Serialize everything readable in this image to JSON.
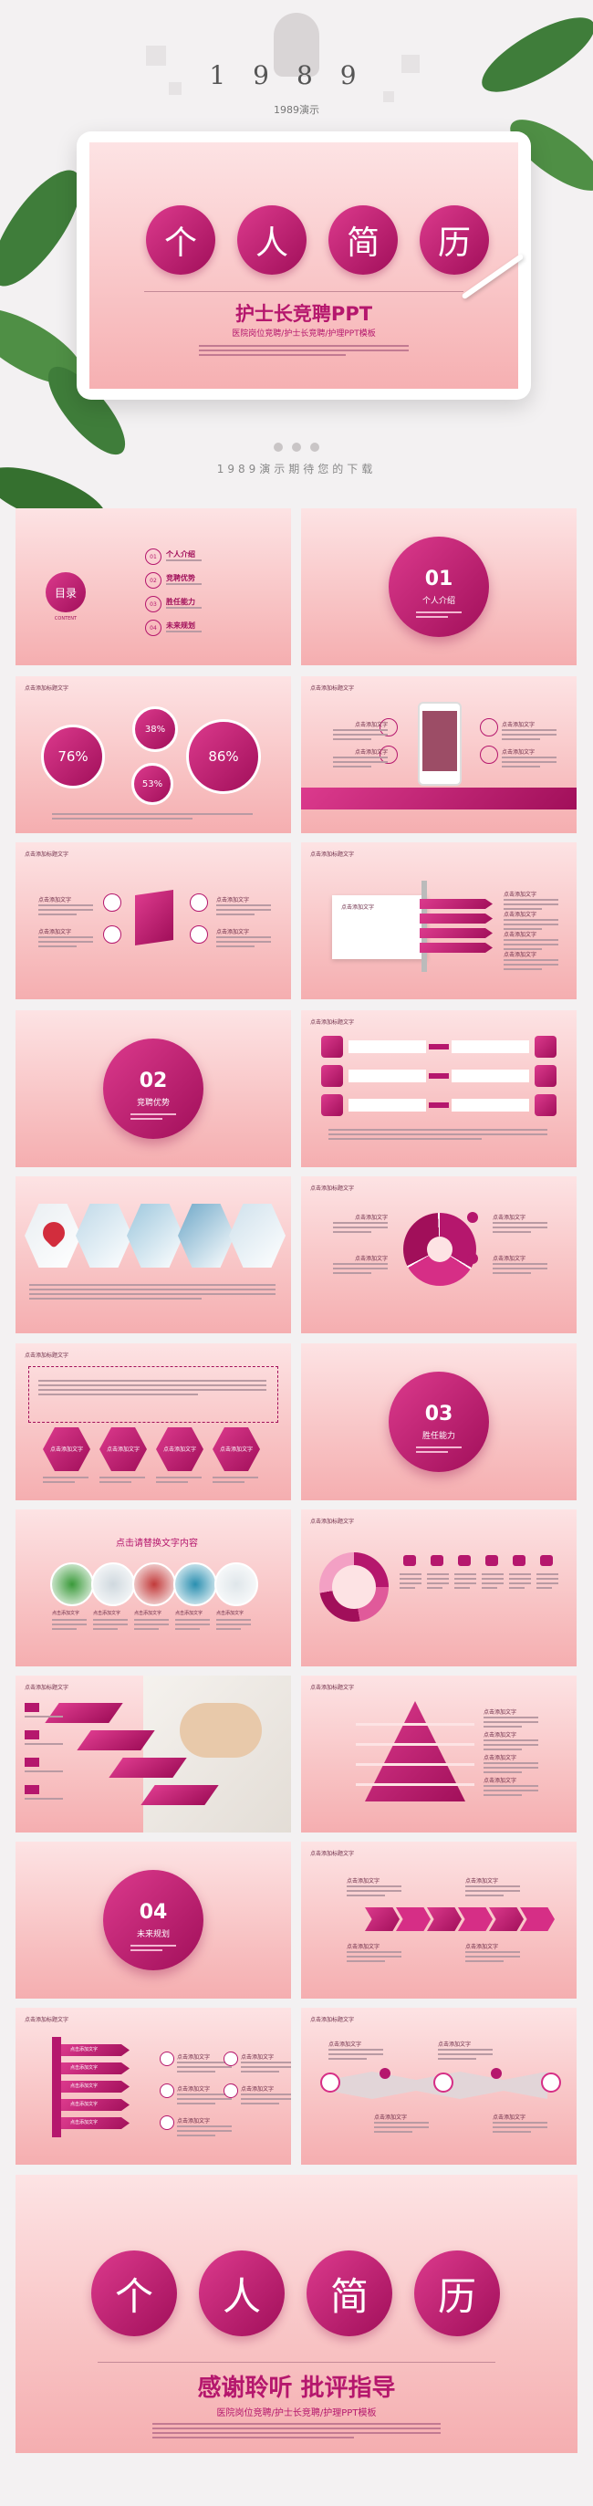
{
  "header": {
    "logo_number": "1989",
    "logo_caption": "1989演示",
    "tagline": "1989演示期待您的下载"
  },
  "cover": {
    "title_chars": [
      "个",
      "人",
      "简",
      "历"
    ],
    "subtitle": "护士长竞聘PPT",
    "caption": "医院岗位竞聘/护士长竞聘/护理PPT模板"
  },
  "slide_heading": "点击添加标题文字",
  "placeholder": "点击添加文字",
  "contents": {
    "title": "目录",
    "subtitle": "CONTENT",
    "items": [
      {
        "num": "01",
        "label": "个人介绍"
      },
      {
        "num": "02",
        "label": "竞聘优势"
      },
      {
        "num": "03",
        "label": "胜任能力"
      },
      {
        "num": "04",
        "label": "未来规划"
      }
    ]
  },
  "sections": [
    {
      "num": "01",
      "label": "个人介绍"
    },
    {
      "num": "02",
      "label": "竞聘优势"
    },
    {
      "num": "03",
      "label": "胜任能力"
    },
    {
      "num": "04",
      "label": "未来规划"
    }
  ],
  "stats": [
    "76%",
    "38%",
    "53%",
    "86%"
  ],
  "photo_heading": "点击请替换文字内容",
  "ending": {
    "title_chars": [
      "个",
      "人",
      "简",
      "历"
    ],
    "subtitle": "感谢聆听 批评指导",
    "caption": "医院岗位竞聘/护士长竞聘/护理PPT模板"
  }
}
